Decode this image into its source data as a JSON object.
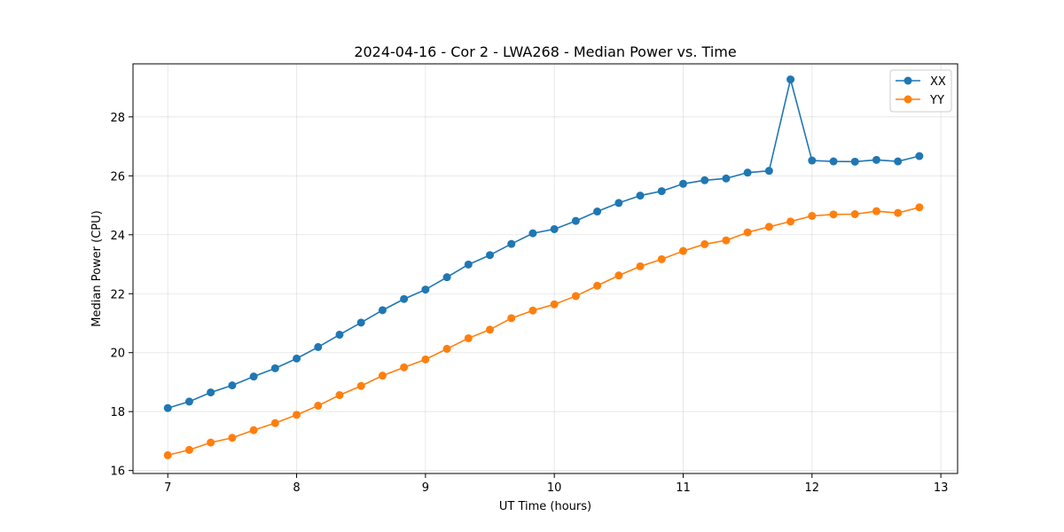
{
  "chart_data": {
    "type": "line",
    "title": "2024-04-16 - Cor 2 - LWA268 - Median Power vs. Time",
    "xlabel": "UT Time (hours)",
    "ylabel": "Median Power (CPU)",
    "xlim": [
      6.73,
      13.13
    ],
    "ylim": [
      15.9,
      29.8
    ],
    "xticks": [
      7,
      8,
      9,
      10,
      11,
      12,
      13
    ],
    "yticks": [
      16,
      18,
      20,
      22,
      24,
      26,
      28
    ],
    "grid": true,
    "legend_position": "top-right",
    "x": [
      7.0,
      7.1667,
      7.3333,
      7.5,
      7.6667,
      7.8333,
      8.0,
      8.1667,
      8.3333,
      8.5,
      8.6667,
      8.8333,
      9.0,
      9.1667,
      9.3333,
      9.5,
      9.6667,
      9.8333,
      10.0,
      10.1667,
      10.3333,
      10.5,
      10.6667,
      10.8333,
      11.0,
      11.1667,
      11.3333,
      11.5,
      11.6667,
      11.8333,
      12.0,
      12.1667,
      12.3333,
      12.5,
      12.6667,
      12.8333
    ],
    "series": [
      {
        "name": "XX",
        "color": "#1f77b4",
        "values": [
          18.12,
          18.34,
          18.65,
          18.89,
          19.19,
          19.47,
          19.8,
          20.19,
          20.61,
          21.02,
          21.44,
          21.82,
          22.14,
          22.56,
          22.99,
          23.31,
          23.69,
          24.05,
          24.19,
          24.47,
          24.79,
          25.08,
          25.33,
          25.48,
          25.73,
          25.85,
          25.91,
          26.11,
          26.17,
          29.27,
          26.52,
          26.49,
          26.48,
          26.54,
          26.49,
          26.67
        ]
      },
      {
        "name": "YY",
        "color": "#ff7f0e",
        "values": [
          16.52,
          16.7,
          16.95,
          17.11,
          17.37,
          17.61,
          17.89,
          18.2,
          18.56,
          18.87,
          19.22,
          19.5,
          19.77,
          20.13,
          20.49,
          20.78,
          21.17,
          21.43,
          21.64,
          21.92,
          22.27,
          22.62,
          22.93,
          23.17,
          23.45,
          23.68,
          23.81,
          24.08,
          24.27,
          24.45,
          24.64,
          24.69,
          24.7,
          24.8,
          24.74,
          24.93
        ]
      }
    ]
  }
}
